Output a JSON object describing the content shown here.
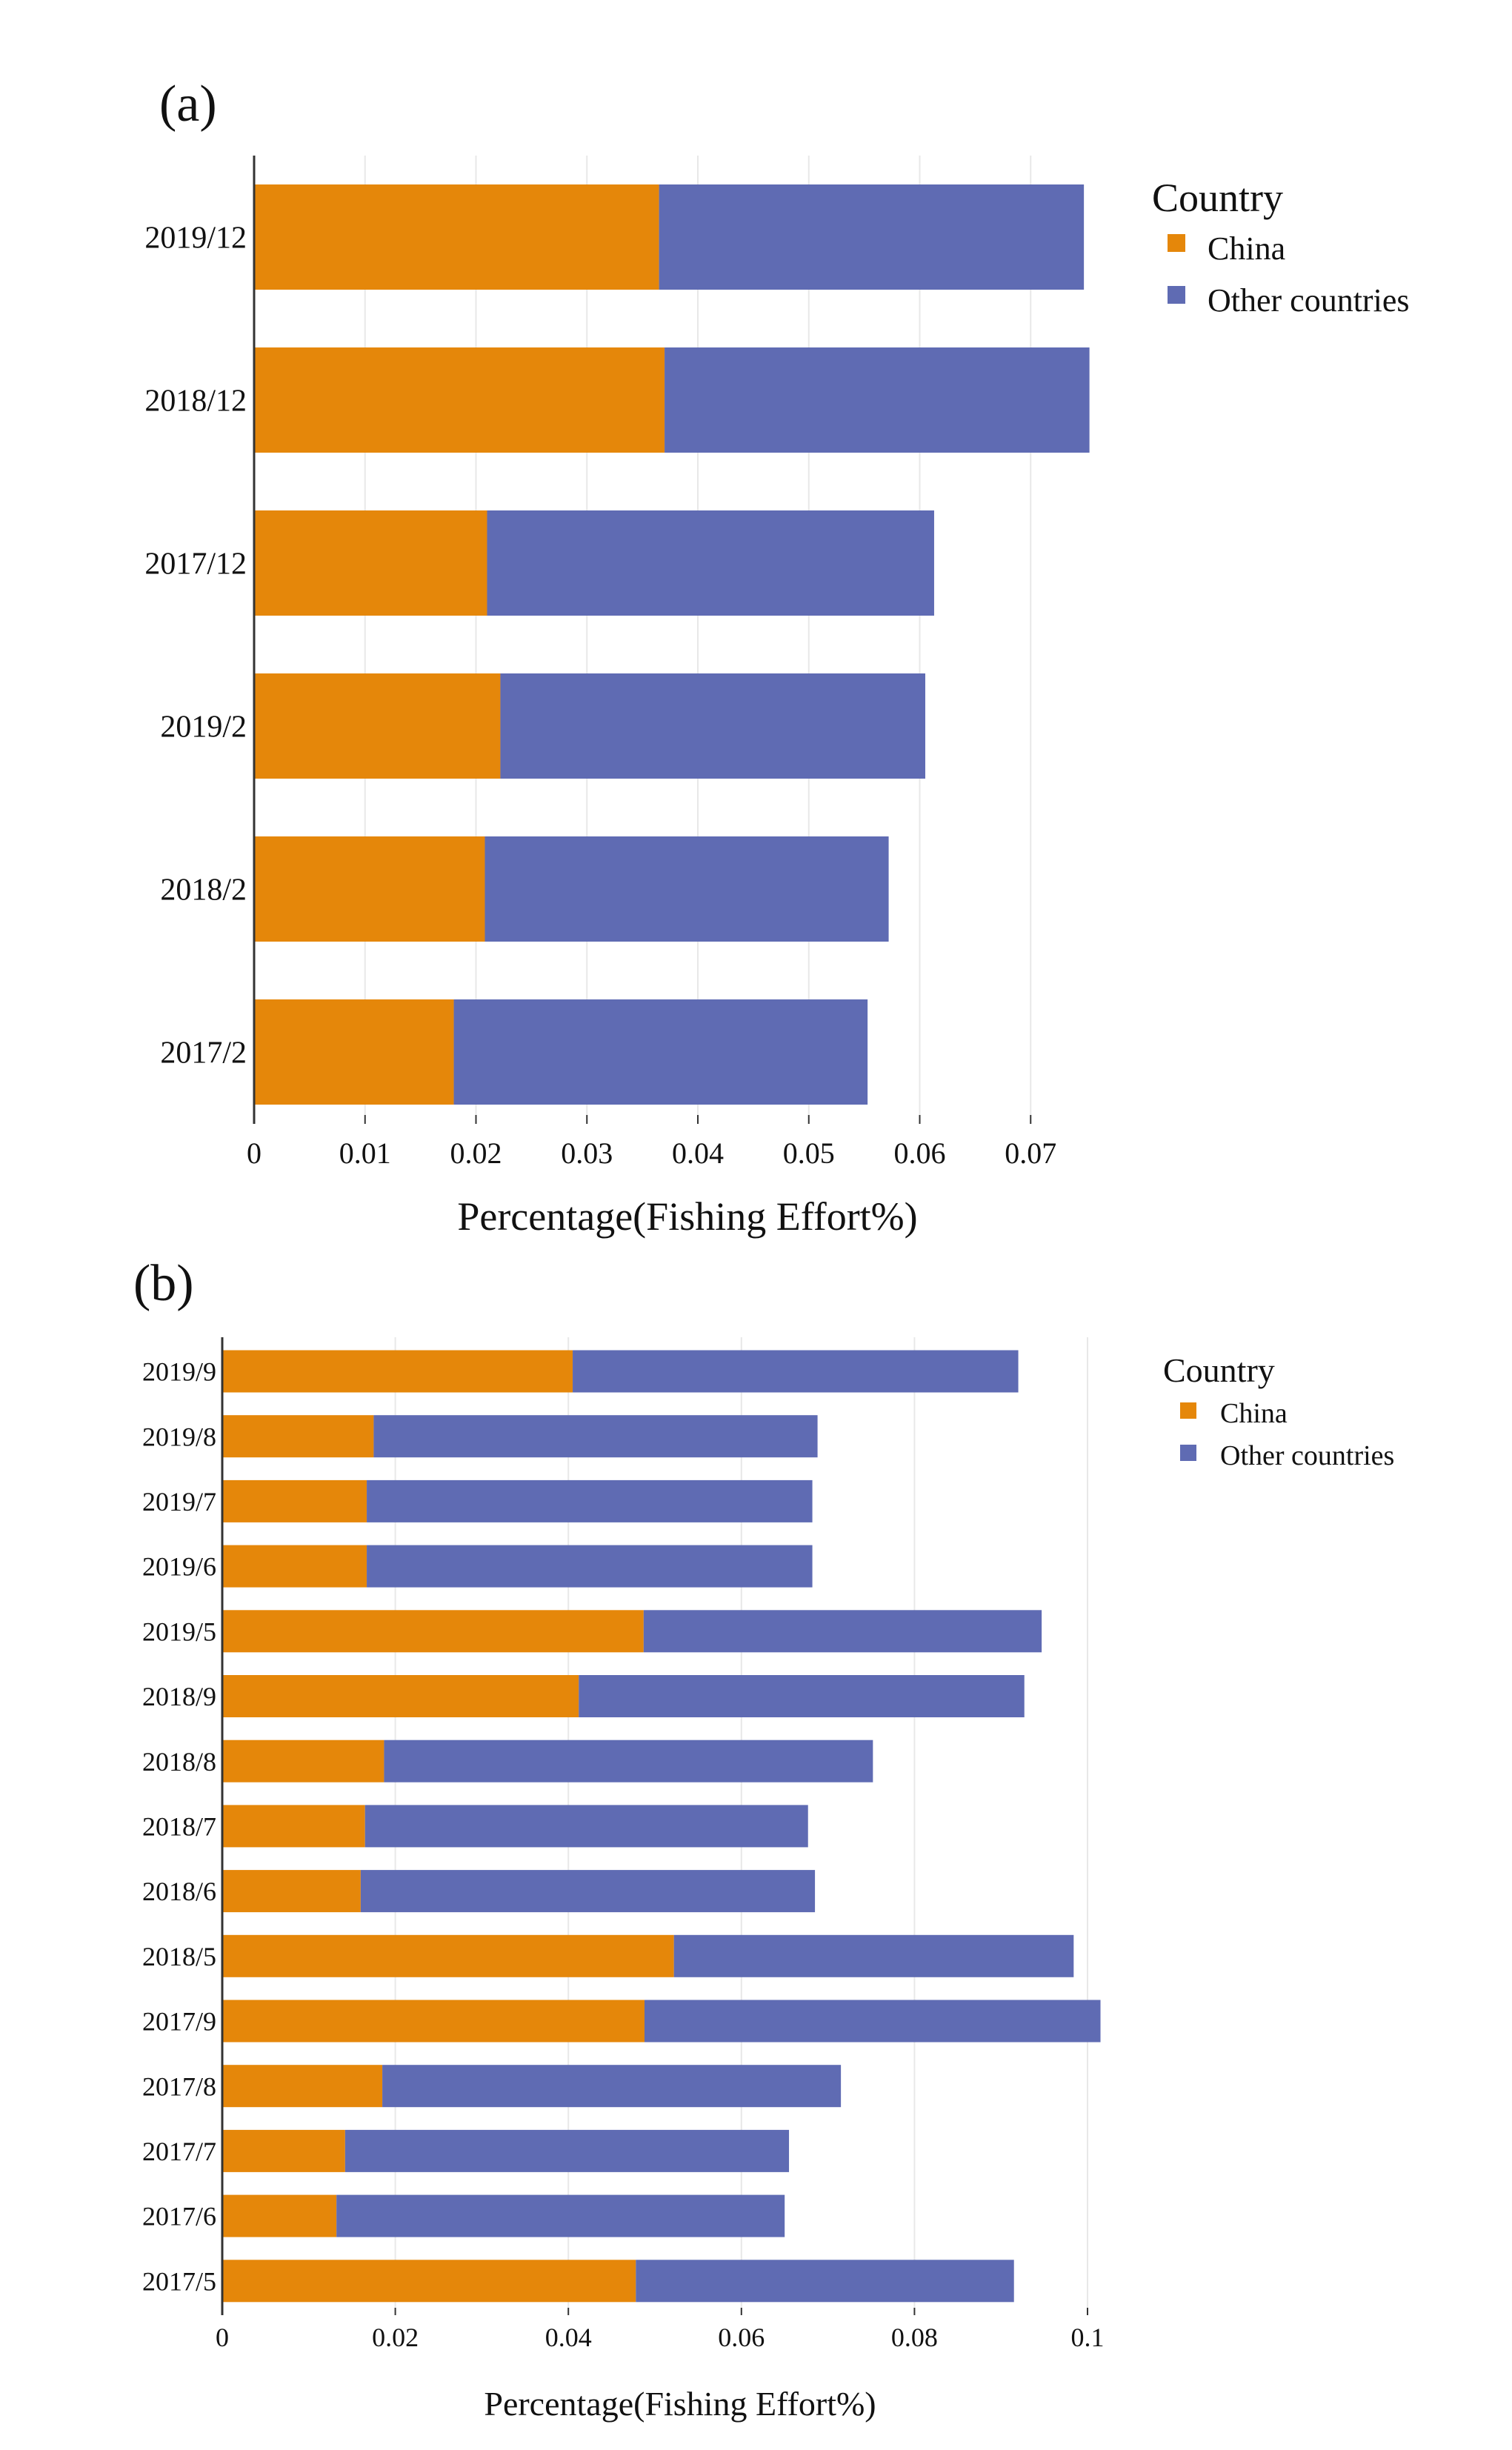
{
  "colors": {
    "china": "#E5870A",
    "other": "#5F6BB3",
    "grid": "#E8E8E8",
    "axis": "#333333"
  },
  "chart_data": [
    {
      "panel_label": "(a)",
      "type": "bar",
      "orientation": "horizontal",
      "stacked": true,
      "categories": [
        "2019/12",
        "2018/12",
        "2017/12",
        "2019/2",
        "2018/2",
        "2017/2"
      ],
      "series": [
        {
          "name": "China",
          "values": [
            0.0365,
            0.037,
            0.021,
            0.0222,
            0.0208,
            0.018
          ]
        },
        {
          "name": "Other countries",
          "values": [
            0.0383,
            0.0383,
            0.0403,
            0.0383,
            0.0364,
            0.0373
          ]
        }
      ],
      "xlabel": "Percentage(Fishing Effort%)",
      "ylabel": "",
      "xlim": [
        0,
        0.08
      ],
      "xticks": [
        0,
        0.01,
        0.02,
        0.03,
        0.04,
        0.05,
        0.06,
        0.07
      ],
      "xtick_labels": [
        "0",
        "0.01",
        "0.02",
        "0.03",
        "0.04",
        "0.05",
        "0.06",
        "0.07"
      ],
      "legend_title": "Country",
      "legend_position": "top-right",
      "grid": true
    },
    {
      "panel_label": "(b)",
      "type": "bar",
      "orientation": "horizontal",
      "stacked": true,
      "categories": [
        "2019/9",
        "2019/8",
        "2019/7",
        "2019/6",
        "2019/5",
        "2018/9",
        "2018/8",
        "2018/7",
        "2018/6",
        "2018/5",
        "2017/9",
        "2017/8",
        "2017/7",
        "2017/6",
        "2017/5"
      ],
      "series": [
        {
          "name": "China",
          "values": [
            0.0405,
            0.0175,
            0.0167,
            0.0167,
            0.0487,
            0.0412,
            0.0187,
            0.0165,
            0.016,
            0.0522,
            0.0488,
            0.0185,
            0.0142,
            0.0132,
            0.0478
          ]
        },
        {
          "name": "Other countries",
          "values": [
            0.0515,
            0.0513,
            0.0515,
            0.0515,
            0.046,
            0.0515,
            0.0565,
            0.0512,
            0.0525,
            0.0462,
            0.0527,
            0.053,
            0.0513,
            0.0518,
            0.0437
          ]
        }
      ],
      "xlabel": "Percentage(Fishing Effort%)",
      "ylabel": "",
      "xlim": [
        0,
        0.105
      ],
      "xticks": [
        0,
        0.02,
        0.04,
        0.06,
        0.08,
        0.1
      ],
      "xtick_labels": [
        "0",
        "0.02",
        "0.04",
        "0.06",
        "0.08",
        "0.1"
      ],
      "legend_title": "Country",
      "legend_position": "top-right",
      "grid": true
    }
  ]
}
